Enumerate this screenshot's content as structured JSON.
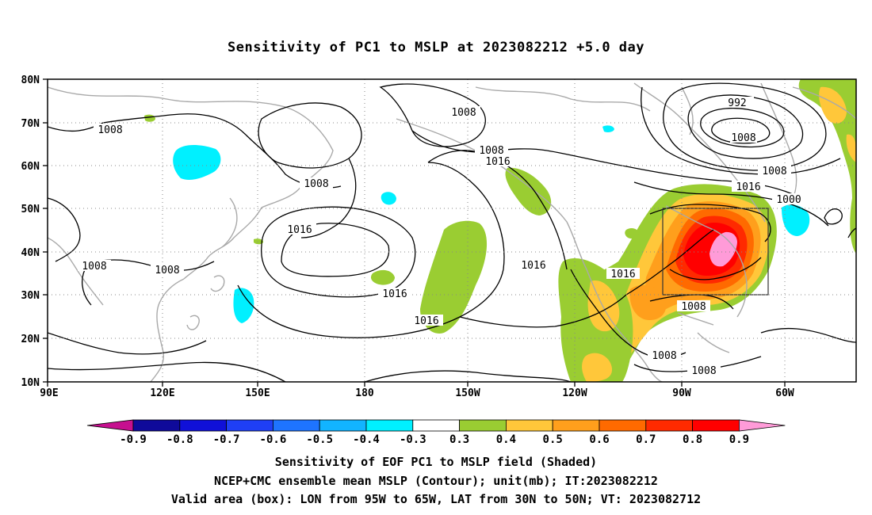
{
  "title": "Sensitivity of PC1 to MSLP at 2023082212 +5.0 day",
  "lat_ticks": [
    "80N",
    "70N",
    "60N",
    "50N",
    "40N",
    "30N",
    "20N",
    "10N"
  ],
  "lon_ticks": [
    "90E",
    "120E",
    "150E",
    "180",
    "150W",
    "120W",
    "90W",
    "60W"
  ],
  "contour_labels": [
    "1008",
    "1008",
    "1008",
    "1008",
    "1008",
    "1008",
    "1008",
    "1008",
    "1008",
    "1016",
    "1016",
    "1016",
    "1016",
    "1016",
    "1016",
    "1016",
    "1000",
    "992",
    "1008",
    "1008"
  ],
  "colorbar": {
    "labels": [
      "-0.9",
      "-0.8",
      "-0.7",
      "-0.6",
      "-0.5",
      "-0.4",
      "-0.3",
      "0.3",
      "0.4",
      "0.5",
      "0.6",
      "0.7",
      "0.8",
      "0.9"
    ],
    "colors": [
      "#0f0a9a",
      "#1010d8",
      "#1f3ff5",
      "#1e74ff",
      "#12b4ff",
      "#00f0ff",
      "#ffffff",
      "#9acd32",
      "#ffc73a",
      "#ff9f1c",
      "#ff6a00",
      "#ff2a00",
      "#ff0000"
    ],
    "low_end_color": "#c6108f",
    "high_end_color": "#ff9bd8"
  },
  "footer": {
    "line1": "Sensitivity of EOF PC1 to MSLP field (Shaded)",
    "line2": "NCEP+CMC ensemble mean MSLP (Contour); unit(mb); IT:2023082212",
    "line3": "Valid area (box): LON from 95W to 65W, LAT from 30N to 50N; VT: 2023082712"
  }
}
